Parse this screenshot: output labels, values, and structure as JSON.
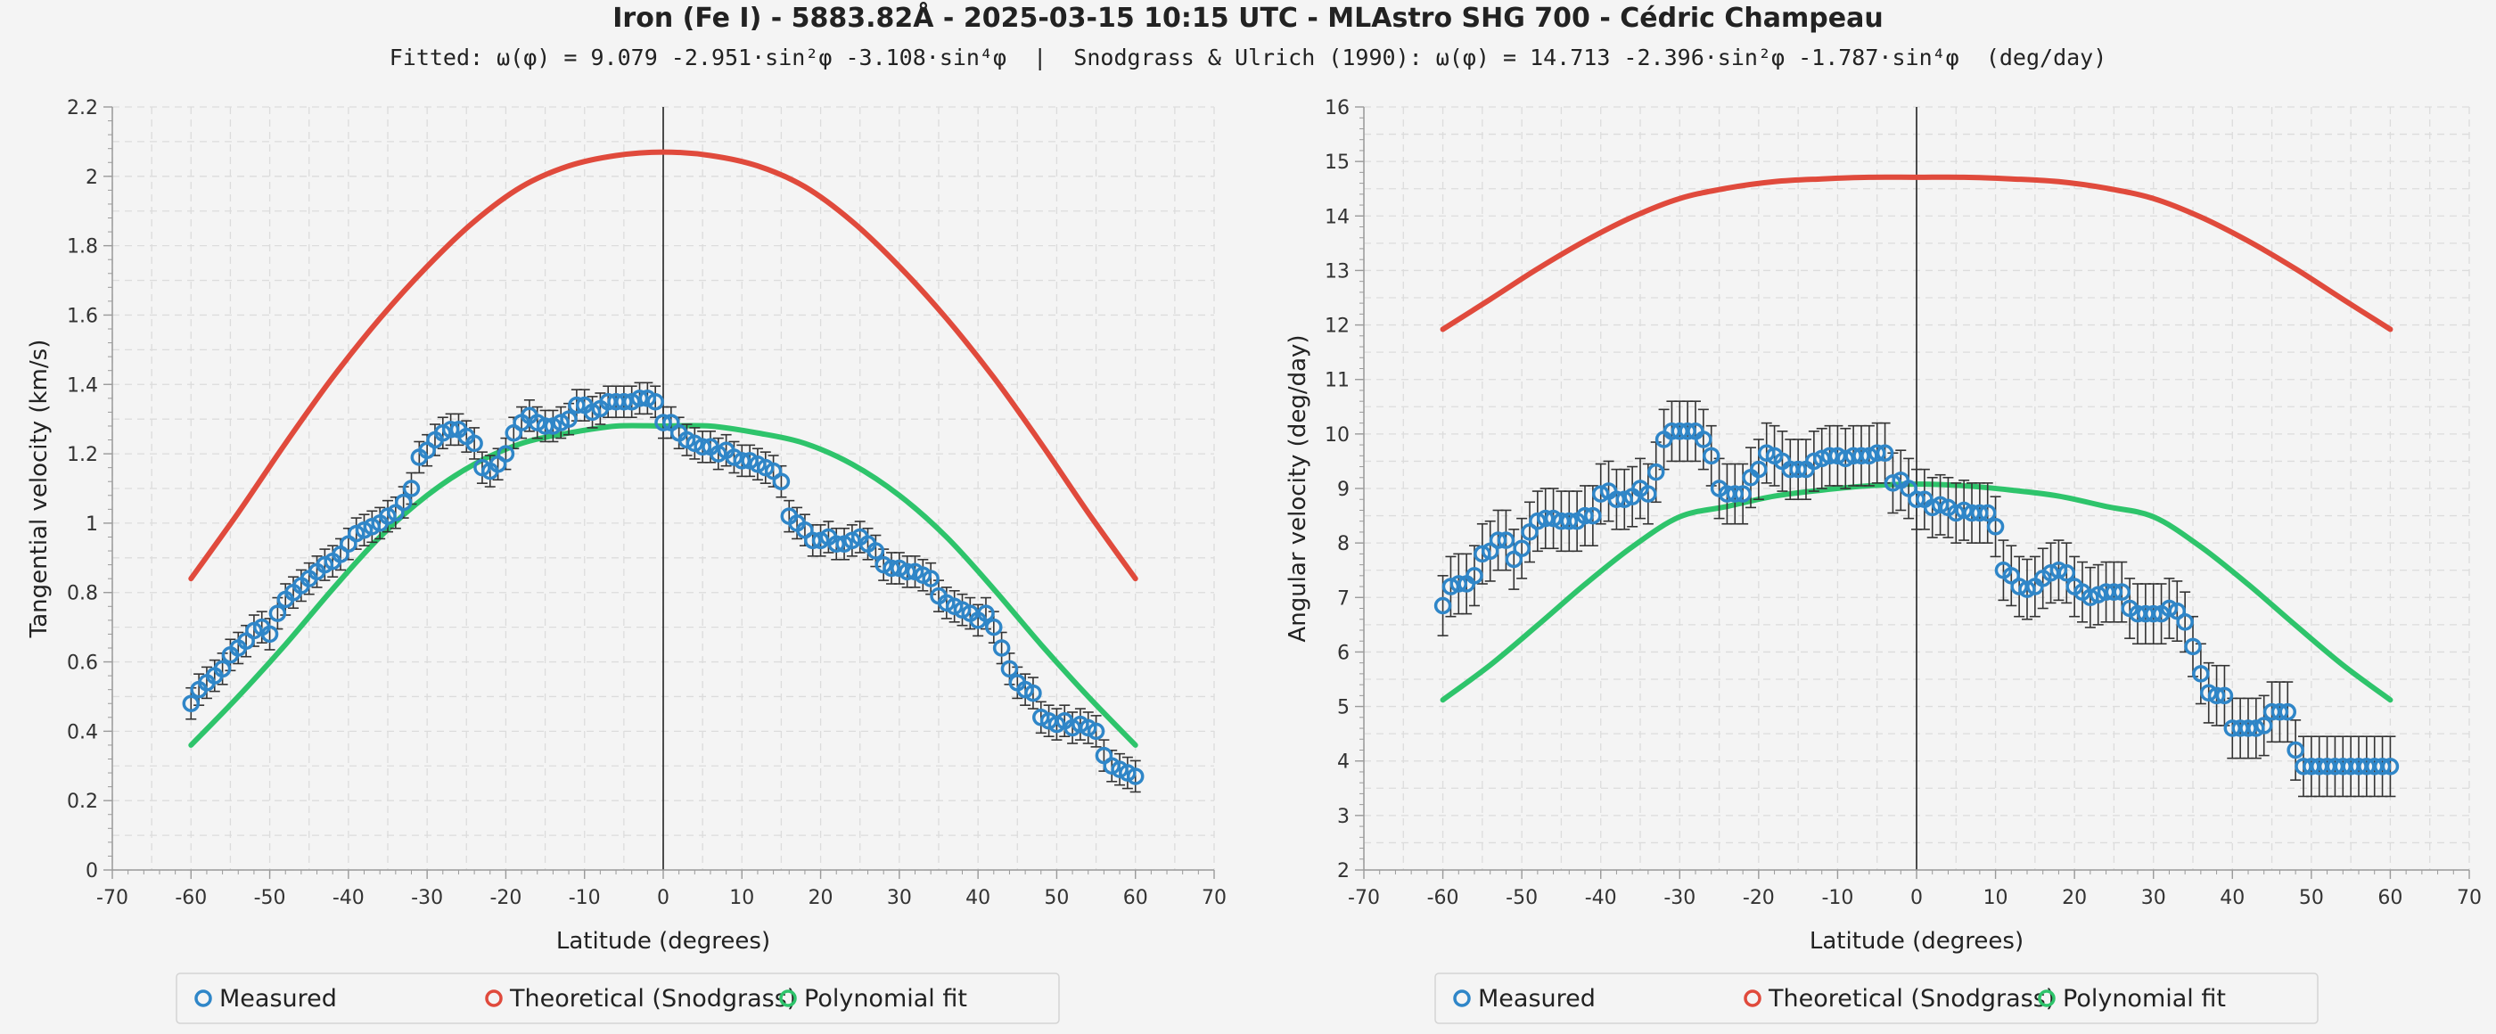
{
  "title": "Iron (Fe I) - 5883.82Å - 2025-03-15 10:15 UTC - MLAstro SHG 700 - Cédric Champeau",
  "subtitle": "Fitted: ω(φ) = 9.079 -2.951·sin²φ -3.108·sin⁴φ  |  Snodgrass & Ulrich (1990): ω(φ) = 14.713 -2.396·sin²φ -1.787·sin⁴φ  (deg/day)",
  "colors": {
    "measured": "#2f86c8",
    "theoretical": "#e04a3c",
    "fit": "#2ec46b",
    "errorbar": "#333333"
  },
  "chart_data": [
    {
      "type": "scatter",
      "xlabel": "Latitude (degrees)",
      "ylabel": "Tangential velocity (km/s)",
      "xlim": [
        -70,
        70
      ],
      "ylim": [
        0,
        2.2
      ],
      "x_ticks": [
        -70,
        -60,
        -50,
        -40,
        -30,
        -20,
        -10,
        0,
        10,
        20,
        30,
        40,
        50,
        60,
        70
      ],
      "y_ticks": [
        0,
        0.2,
        0.4,
        0.6,
        0.8,
        1,
        1.2,
        1.4,
        1.6,
        1.8,
        2,
        2.2
      ],
      "grid": true,
      "legend_position": "bottom",
      "measured": {
        "name": "Measured",
        "x": [
          -60,
          -59,
          -58,
          -57,
          -56,
          -55,
          -54,
          -53,
          -52,
          -51,
          -50,
          -49,
          -48,
          -47,
          -46,
          -45,
          -44,
          -43,
          -42,
          -41,
          -40,
          -39,
          -38,
          -37,
          -36,
          -35,
          -34,
          -33,
          -32,
          -31,
          -30,
          -29,
          -28,
          -27,
          -26,
          -25,
          -24,
          -23,
          -22,
          -21,
          -20,
          -19,
          -18,
          -17,
          -16,
          -15,
          -14,
          -13,
          -12,
          -11,
          -10,
          -9,
          -8,
          -7,
          -6,
          -5,
          -4,
          -3,
          -2,
          -1,
          0,
          1,
          2,
          3,
          4,
          5,
          6,
          7,
          8,
          9,
          10,
          11,
          12,
          13,
          14,
          15,
          16,
          17,
          18,
          19,
          20,
          21,
          22,
          23,
          24,
          25,
          26,
          27,
          28,
          29,
          30,
          31,
          32,
          33,
          34,
          35,
          36,
          37,
          38,
          39,
          40,
          41,
          42,
          43,
          44,
          45,
          46,
          47,
          48,
          49,
          50,
          51,
          52,
          53,
          54,
          55,
          56,
          57,
          58,
          59,
          60
        ],
        "y": [
          0.48,
          0.52,
          0.54,
          0.56,
          0.58,
          0.62,
          0.64,
          0.66,
          0.69,
          0.7,
          0.68,
          0.74,
          0.78,
          0.8,
          0.82,
          0.84,
          0.86,
          0.88,
          0.89,
          0.91,
          0.94,
          0.97,
          0.98,
          0.99,
          1.0,
          1.02,
          1.03,
          1.06,
          1.1,
          1.19,
          1.21,
          1.24,
          1.26,
          1.27,
          1.27,
          1.25,
          1.23,
          1.16,
          1.15,
          1.17,
          1.2,
          1.26,
          1.29,
          1.31,
          1.29,
          1.28,
          1.28,
          1.29,
          1.3,
          1.34,
          1.34,
          1.32,
          1.33,
          1.35,
          1.35,
          1.35,
          1.35,
          1.36,
          1.36,
          1.35,
          1.29,
          1.29,
          1.26,
          1.24,
          1.23,
          1.22,
          1.22,
          1.2,
          1.21,
          1.19,
          1.18,
          1.18,
          1.17,
          1.16,
          1.15,
          1.12,
          1.02,
          1.0,
          0.98,
          0.95,
          0.95,
          0.96,
          0.94,
          0.94,
          0.95,
          0.96,
          0.94,
          0.92,
          0.88,
          0.87,
          0.87,
          0.86,
          0.86,
          0.85,
          0.84,
          0.79,
          0.77,
          0.76,
          0.75,
          0.74,
          0.72,
          0.74,
          0.7,
          0.64,
          0.58,
          0.54,
          0.52,
          0.51,
          0.44,
          0.43,
          0.42,
          0.43,
          0.41,
          0.42,
          0.41,
          0.4,
          0.33,
          0.3,
          0.29,
          0.28,
          0.27
        ],
        "err": 0.045
      },
      "lines": [
        {
          "name": "Theoretical (Snodgrass)",
          "x": [
            -60,
            -54,
            -48,
            -42,
            -36,
            -30,
            -24,
            -18,
            -12,
            -6,
            0,
            6,
            12,
            18,
            24,
            30,
            36,
            42,
            48,
            54,
            60
          ],
          "y": [
            0.84,
            1.03,
            1.23,
            1.42,
            1.59,
            1.74,
            1.87,
            1.97,
            2.03,
            2.06,
            2.07,
            2.06,
            2.03,
            1.97,
            1.87,
            1.74,
            1.59,
            1.42,
            1.23,
            1.03,
            0.84
          ]
        },
        {
          "name": "Polynomial fit",
          "x": [
            -60,
            -54,
            -48,
            -42,
            -36,
            -30,
            -24,
            -18,
            -12,
            -6,
            0,
            6,
            12,
            18,
            24,
            30,
            36,
            42,
            48,
            54,
            60
          ],
          "y": [
            0.36,
            0.5,
            0.65,
            0.81,
            0.96,
            1.08,
            1.17,
            1.23,
            1.26,
            1.28,
            1.28,
            1.28,
            1.26,
            1.23,
            1.17,
            1.08,
            0.96,
            0.81,
            0.65,
            0.5,
            0.36
          ]
        }
      ],
      "legend": [
        "Measured",
        "Theoretical (Snodgrass)",
        "Polynomial fit"
      ]
    },
    {
      "type": "scatter",
      "xlabel": "Latitude (degrees)",
      "ylabel": "Angular velocity (deg/day)",
      "xlim": [
        -70,
        70
      ],
      "ylim": [
        2,
        16
      ],
      "x_ticks": [
        -70,
        -60,
        -50,
        -40,
        -30,
        -20,
        -10,
        0,
        10,
        20,
        30,
        40,
        50,
        60,
        70
      ],
      "y_ticks": [
        2,
        3,
        4,
        5,
        6,
        7,
        8,
        9,
        10,
        11,
        12,
        13,
        14,
        15,
        16
      ],
      "grid": true,
      "legend_position": "bottom",
      "measured": {
        "name": "Measured",
        "x": [
          -60,
          -59,
          -58,
          -57,
          -56,
          -55,
          -54,
          -53,
          -52,
          -51,
          -50,
          -49,
          -48,
          -47,
          -46,
          -45,
          -44,
          -43,
          -42,
          -41,
          -40,
          -39,
          -38,
          -37,
          -36,
          -35,
          -34,
          -33,
          -32,
          -31,
          -30,
          -29,
          -28,
          -27,
          -26,
          -25,
          -24,
          -23,
          -22,
          -21,
          -20,
          -19,
          -18,
          -17,
          -16,
          -15,
          -14,
          -13,
          -12,
          -11,
          -10,
          -9,
          -8,
          -7,
          -6,
          -5,
          -4,
          -3,
          -2,
          -1,
          0,
          1,
          2,
          3,
          4,
          5,
          6,
          7,
          8,
          9,
          10,
          11,
          12,
          13,
          14,
          15,
          16,
          17,
          18,
          19,
          20,
          21,
          22,
          23,
          24,
          25,
          26,
          27,
          28,
          29,
          30,
          31,
          32,
          33,
          34,
          35,
          36,
          37,
          38,
          39,
          40,
          41,
          42,
          43,
          44,
          45,
          46,
          47,
          48,
          49,
          50,
          51,
          52,
          53,
          54,
          55,
          56,
          57,
          58,
          59,
          60
        ],
        "y": [
          6.85,
          7.2,
          7.25,
          7.25,
          7.4,
          7.8,
          7.85,
          8.05,
          8.05,
          7.7,
          7.9,
          8.2,
          8.4,
          8.45,
          8.45,
          8.4,
          8.4,
          8.4,
          8.5,
          8.5,
          8.9,
          8.95,
          8.8,
          8.8,
          8.85,
          9.0,
          8.9,
          9.3,
          9.9,
          10.05,
          10.05,
          10.05,
          10.05,
          9.9,
          9.6,
          9.0,
          8.9,
          8.9,
          8.9,
          9.2,
          9.35,
          9.65,
          9.6,
          9.5,
          9.35,
          9.35,
          9.35,
          9.5,
          9.55,
          9.6,
          9.6,
          9.55,
          9.6,
          9.6,
          9.6,
          9.65,
          9.65,
          9.1,
          9.15,
          9.0,
          8.8,
          8.8,
          8.65,
          8.7,
          8.65,
          8.55,
          8.6,
          8.55,
          8.55,
          8.55,
          8.3,
          7.5,
          7.4,
          7.2,
          7.15,
          7.2,
          7.35,
          7.45,
          7.5,
          7.45,
          7.2,
          7.1,
          7.0,
          7.05,
          7.1,
          7.1,
          7.1,
          6.8,
          6.7,
          6.7,
          6.7,
          6.7,
          6.8,
          6.75,
          6.55,
          6.1,
          5.6,
          5.25,
          5.2,
          5.2,
          4.6,
          4.6,
          4.6,
          4.6,
          4.65,
          4.9,
          4.9,
          4.9,
          4.2,
          3.9,
          3.9,
          3.9,
          3.9,
          3.9,
          3.9,
          3.9,
          3.9,
          3.9,
          3.9,
          3.9,
          3.9
        ],
        "err": 0.55
      },
      "lines": [
        {
          "name": "Theoretical (Snodgrass)",
          "x": [
            -60,
            -54,
            -48,
            -42,
            -36,
            -30,
            -24,
            -18,
            -12,
            -6,
            0,
            6,
            12,
            18,
            24,
            30,
            36,
            42,
            48,
            54,
            60
          ],
          "y": [
            11.92,
            12.47,
            13.03,
            13.54,
            13.98,
            14.32,
            14.51,
            14.63,
            14.68,
            14.71,
            14.71,
            14.71,
            14.68,
            14.63,
            14.51,
            14.32,
            13.98,
            13.54,
            13.03,
            12.47,
            11.92
          ]
        },
        {
          "name": "Polynomial fit",
          "x": [
            -60,
            -54,
            -48,
            -42,
            -36,
            -30,
            -24,
            -18,
            -12,
            -6,
            0,
            6,
            12,
            18,
            24,
            30,
            36,
            42,
            48,
            54,
            60
          ],
          "y": [
            5.12,
            5.76,
            6.49,
            7.24,
            7.93,
            8.48,
            8.67,
            8.86,
            8.97,
            9.05,
            9.08,
            9.05,
            8.97,
            8.86,
            8.67,
            8.48,
            7.93,
            7.24,
            6.49,
            5.76,
            5.12
          ]
        }
      ],
      "legend": [
        "Measured",
        "Theoretical (Snodgrass)",
        "Polynomial fit"
      ]
    }
  ]
}
